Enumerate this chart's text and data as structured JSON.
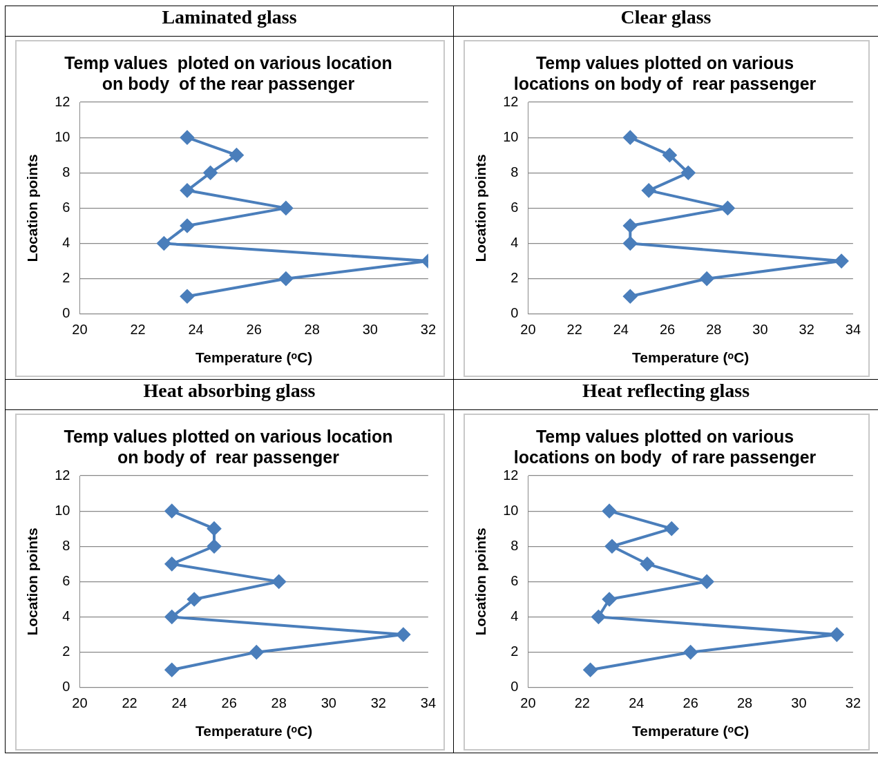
{
  "chart_data": [
    {
      "type": "line",
      "title": "Laminated glass",
      "subtitle": "Temp values  ploted on various location on body  of the rear passenger",
      "xlabel": "Temperature (ᵒC)",
      "ylabel": "Location points",
      "xlim": [
        20,
        32
      ],
      "xticks": [
        20,
        22,
        24,
        26,
        28,
        30,
        32
      ],
      "ylim": [
        0,
        12
      ],
      "yticks": [
        0,
        2,
        4,
        6,
        8,
        10,
        12
      ],
      "grid": "y",
      "legend": false,
      "marker": "diamond",
      "line_style": "solid",
      "series": [
        {
          "color": "#4a7ebb",
          "x": [
            23.7,
            27.1,
            32,
            22.9,
            23.7,
            27.1,
            23.7,
            24.5,
            25.4,
            23.7
          ],
          "values": [
            1,
            2,
            3,
            4,
            5,
            6,
            7,
            8,
            9,
            10
          ]
        }
      ]
    },
    {
      "type": "line",
      "title": "Clear glass",
      "subtitle": "Temp values plotted on various locations on body of  rear passenger",
      "xlabel": "Temperature (ᵒC)",
      "ylabel": "Location points",
      "xlim": [
        20,
        34
      ],
      "xticks": [
        20,
        22,
        24,
        26,
        28,
        30,
        32,
        34
      ],
      "ylim": [
        0,
        12
      ],
      "yticks": [
        0,
        2,
        4,
        6,
        8,
        10,
        12
      ],
      "grid": "y",
      "legend": false,
      "marker": "diamond",
      "line_style": "solid",
      "series": [
        {
          "color": "#4a7ebb",
          "x": [
            24.4,
            27.7,
            33.5,
            24.4,
            24.4,
            28.6,
            25.2,
            26.9,
            26.1,
            24.4
          ],
          "values": [
            1,
            2,
            3,
            4,
            5,
            6,
            7,
            8,
            9,
            10
          ]
        }
      ]
    },
    {
      "type": "line",
      "title": "Heat absorbing glass",
      "subtitle": "Temp values plotted on various location on body of  rear passenger",
      "xlabel": "Temperature (ᵒC)",
      "ylabel": "Location points",
      "xlim": [
        20,
        34
      ],
      "xticks": [
        20,
        22,
        24,
        26,
        28,
        30,
        32,
        34
      ],
      "ylim": [
        0,
        12
      ],
      "yticks": [
        0,
        2,
        4,
        6,
        8,
        10,
        12
      ],
      "grid": "y",
      "legend": false,
      "marker": "diamond",
      "line_style": "solid",
      "series": [
        {
          "color": "#4a7ebb",
          "x": [
            23.7,
            27.1,
            33.0,
            23.7,
            24.6,
            28.0,
            23.7,
            25.4,
            25.4,
            23.7
          ],
          "values": [
            1,
            2,
            3,
            4,
            5,
            6,
            7,
            8,
            9,
            10
          ]
        }
      ]
    },
    {
      "type": "line",
      "title": "Heat reflecting glass",
      "subtitle": "Temp values plotted on various locations on body  of rare passenger",
      "xlabel": "Temperature (ᵒC)",
      "ylabel": "Location points",
      "xlim": [
        20,
        32
      ],
      "xticks": [
        20,
        22,
        24,
        26,
        28,
        30,
        32
      ],
      "ylim": [
        0,
        12
      ],
      "yticks": [
        0,
        2,
        4,
        6,
        8,
        10,
        12
      ],
      "grid": "y",
      "legend": false,
      "marker": "diamond",
      "line_style": "solid",
      "series": [
        {
          "color": "#4a7ebb",
          "x": [
            22.3,
            26.0,
            31.4,
            22.6,
            23.0,
            26.6,
            24.4,
            23.1,
            25.3,
            23.0
          ],
          "values": [
            1,
            2,
            3,
            4,
            5,
            6,
            7,
            8,
            9,
            10
          ]
        }
      ]
    }
  ]
}
